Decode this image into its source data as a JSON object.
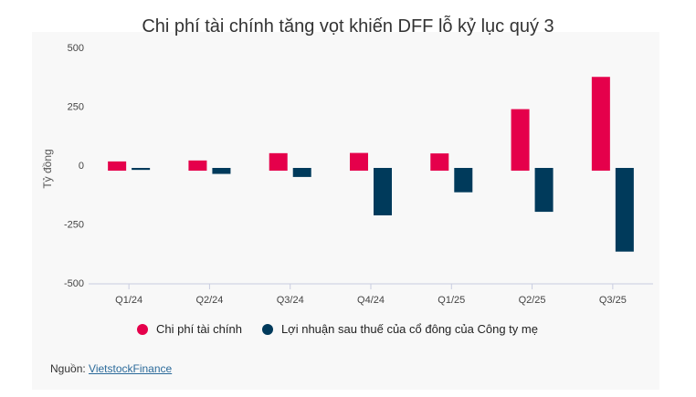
{
  "chart_data": {
    "type": "bar",
    "title": "Chi phí tài chính tăng vọt khiến DFF lỗ kỷ lục quý 3",
    "ylabel": "Tỷ đồng",
    "xlabel": "",
    "ylim": [
      -500,
      500
    ],
    "yticks": [
      500,
      250,
      0,
      -250,
      -500
    ],
    "ytick_labels": [
      "500",
      "250",
      "0",
      "-250",
      "-500"
    ],
    "categories": [
      "Q1/24",
      "Q2/24",
      "Q3/24",
      "Q4/24",
      "Q1/25",
      "Q2/25",
      "Q3/25"
    ],
    "series": [
      {
        "name": "Chi phí tài chính",
        "color": "#e5004b",
        "values": [
          16,
          20,
          51,
          52,
          50,
          238,
          375
        ]
      },
      {
        "name": "Lợi nhuận sau thuế của cổ đông của Công ty mẹ",
        "color": "#003a5b",
        "values": [
          -20,
          -37,
          -50,
          -213,
          -115,
          -198,
          -367
        ]
      }
    ],
    "legend_position": "bottom"
  },
  "source": {
    "prefix": "Nguồn: ",
    "link_text": "VietstockFinance"
  }
}
